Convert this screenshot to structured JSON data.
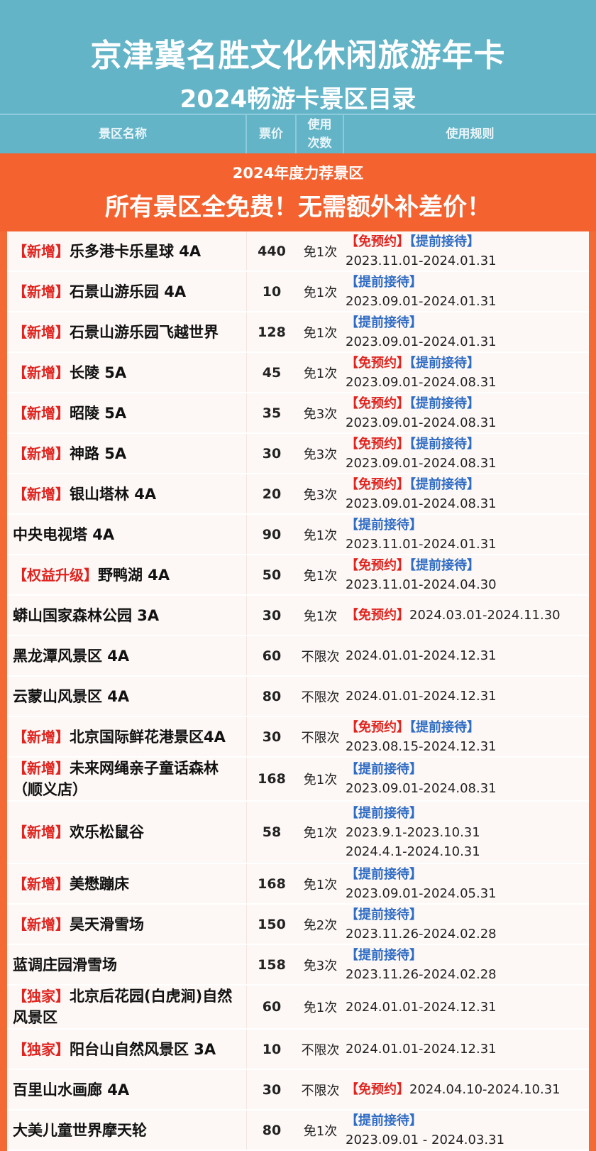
{
  "header": {
    "title": "京津冀名胜文化休闲旅游年卡",
    "subtitle": "2024畅游卡景区目录"
  },
  "columns": {
    "name": "景区名称",
    "price": "票价",
    "count": "使用\n次数",
    "rules": "使用规则"
  },
  "promo": {
    "line1": "2024年度力荐景区",
    "line2": "所有景区全免费！无需额外补差价！"
  },
  "colors": {
    "header": "#64b4c8",
    "promo": "#f4622f",
    "tag_red": "#e0241f",
    "tag_blue": "#2f6cc4"
  },
  "rows": [
    {
      "tag": "【新增】",
      "name": "乐多港卡乐星球 4A",
      "price": "440",
      "count": "免1次",
      "rtags": [
        "【免预约】",
        "【提前接待】"
      ],
      "dates": [
        "2023.11.01-2024.01.31"
      ]
    },
    {
      "tag": "【新增】",
      "name": "石景山游乐园 4A",
      "price": "10",
      "count": "免1次",
      "rtags": [
        "【提前接待】"
      ],
      "dates": [
        "2023.09.01-2024.01.31"
      ]
    },
    {
      "tag": "【新增】",
      "name": "石景山游乐园飞越世界",
      "price": "128",
      "count": "免1次",
      "rtags": [
        "【提前接待】"
      ],
      "dates": [
        "2023.09.01-2024.01.31"
      ]
    },
    {
      "tag": "【新增】",
      "name": "长陵 5A",
      "price": "45",
      "count": "免1次",
      "rtags": [
        "【免预约】",
        "【提前接待】"
      ],
      "dates": [
        "2023.09.01-2024.08.31"
      ]
    },
    {
      "tag": "【新增】",
      "name": "昭陵 5A",
      "price": "35",
      "count": "免3次",
      "rtags": [
        "【免预约】",
        "【提前接待】"
      ],
      "dates": [
        "2023.09.01-2024.08.31"
      ]
    },
    {
      "tag": "【新增】",
      "name": "神路 5A",
      "price": "30",
      "count": "免3次",
      "rtags": [
        "【免预约】",
        "【提前接待】"
      ],
      "dates": [
        "2023.09.01-2024.08.31"
      ]
    },
    {
      "tag": "【新增】",
      "name": "银山塔林 4A",
      "price": "20",
      "count": "免3次",
      "rtags": [
        "【免预约】",
        "【提前接待】"
      ],
      "dates": [
        "2023.09.01-2024.08.31"
      ]
    },
    {
      "tag": "",
      "name": "中央电视塔 4A",
      "price": "90",
      "count": "免1次",
      "rtags": [
        "【提前接待】"
      ],
      "dates": [
        "2023.11.01-2024.01.31"
      ]
    },
    {
      "tag": "【权益升级】",
      "name": "野鸭湖 4A",
      "price": "50",
      "count": "免1次",
      "rtags": [
        "【免预约】",
        "【提前接待】"
      ],
      "dates": [
        "2023.11.01-2024.04.30"
      ]
    },
    {
      "tag": "",
      "name": "蟒山国家森林公园 3A",
      "price": "30",
      "count": "免1次",
      "inline": true,
      "rtags": [
        "【免预约】"
      ],
      "dates": [
        "2024.03.01-2024.11.30"
      ]
    },
    {
      "tag": "",
      "name": "黑龙潭风景区 4A",
      "price": "60",
      "count": "不限次",
      "rtags": [],
      "dates": [
        "2024.01.01-2024.12.31"
      ]
    },
    {
      "tag": "",
      "name": "云蒙山风景区 4A",
      "price": "80",
      "count": "不限次",
      "rtags": [],
      "dates": [
        "2024.01.01-2024.12.31"
      ]
    },
    {
      "tag": "【新增】",
      "name": "北京国际鲜花港景区4A",
      "price": "30",
      "count": "不限次",
      "rtags": [
        "【免预约】",
        "【提前接待】"
      ],
      "dates": [
        "2023.08.15-2024.12.31"
      ]
    },
    {
      "tag": "【新增】",
      "name": "未来网绳亲子童话森林（顺义店）",
      "price": "168",
      "count": "免1次",
      "rtags": [
        "【提前接待】"
      ],
      "dates": [
        "2023.09.01-2024.08.31"
      ]
    },
    {
      "tag": "【新增】",
      "name": "欢乐松鼠谷",
      "price": "58",
      "count": "免1次",
      "rtags": [
        "【提前接待】"
      ],
      "dates": [
        "2023.9.1-2023.10.31",
        "2024.4.1-2024.10.31"
      ]
    },
    {
      "tag": "【新增】",
      "name": "美懋蹦床",
      "price": "168",
      "count": "免1次",
      "rtags": [
        "【提前接待】"
      ],
      "dates": [
        "2023.09.01-2024.05.31"
      ]
    },
    {
      "tag": "【新增】",
      "name": "昊天滑雪场",
      "price": "150",
      "count": "免2次",
      "rtags": [
        "【提前接待】"
      ],
      "dates": [
        "2023.11.26-2024.02.28"
      ]
    },
    {
      "tag": "",
      "name": "蓝调庄园滑雪场",
      "price": "158",
      "count": "免3次",
      "rtags": [
        "【提前接待】"
      ],
      "dates": [
        "2023.11.26-2024.02.28"
      ]
    },
    {
      "tag": "【独家】",
      "name": "北京后花园(白虎涧)自然风景区",
      "price": "60",
      "count": "免1次",
      "rtags": [],
      "dates": [
        "2024.01.01-2024.12.31"
      ]
    },
    {
      "tag": "【独家】",
      "name": "阳台山自然风景区 3A",
      "price": "10",
      "count": "不限次",
      "rtags": [],
      "dates": [
        "2024.01.01-2024.12.31"
      ]
    },
    {
      "tag": "",
      "name": "百里山水画廊 4A",
      "price": "30",
      "count": "不限次",
      "inline": true,
      "rtags": [
        "【免预约】"
      ],
      "dates": [
        "2024.04.10-2024.10.31"
      ]
    },
    {
      "tag": "",
      "name": "大美儿童世界摩天轮",
      "price": "80",
      "count": "免1次",
      "rtags": [
        "【提前接待】"
      ],
      "dates": [
        "2023.09.01 - 2024.03.31"
      ]
    }
  ]
}
